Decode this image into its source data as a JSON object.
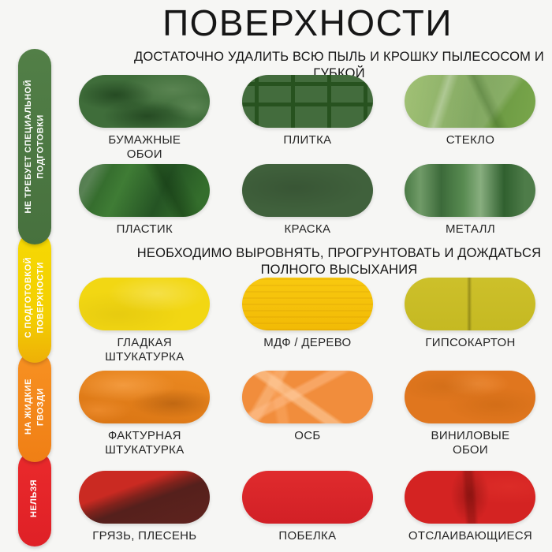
{
  "page": {
    "title": "ПОВЕРХНОСТИ",
    "background_color": "#f6f6f4"
  },
  "sidebar": {
    "sections": [
      {
        "id": "no-prep",
        "label": "НЕ ТРЕБУЕТ СПЕЦИАЛЬНОЙ\nПОДГОТОВКИ",
        "color": "#4e7b44"
      },
      {
        "id": "with-prep",
        "label": "С ПОДГОТОВКОЙ\nПОВЕРХНОСТИ",
        "color": "#f3cf02"
      },
      {
        "id": "liquid-nails",
        "label": "НА ЖИДКИЕ\nГВОЗДИ",
        "color": "#f68b1f"
      },
      {
        "id": "forbidden",
        "label": "НЕЛЬЗЯ",
        "color": "#e52528"
      }
    ]
  },
  "sections": [
    {
      "heading": "ДОСТАТОЧНО УДАЛИТЬ ВСЮ ПЫЛЬ И КРОШКУ ПЫЛЕСОСОМ И ГУБКОЙ"
    },
    {
      "heading": "НЕОБХОДИМО ВЫРОВНЯТЬ, ПРОГРУНТОВАТЬ И ДОЖДАТЬСЯ\nПОЛНОГО ВЫСЫХАНИЯ"
    }
  ],
  "tiles": [
    {
      "label": "БУМАЖНЫЕ\nОБОИ",
      "base_color": "#3f6d3a"
    },
    {
      "label": "ПЛИТКА",
      "base_color": "#436c3d"
    },
    {
      "label": "СТЕКЛО",
      "base_color": "#79a64b"
    },
    {
      "label": "ПЛАСТИК",
      "base_color": "#2f6029"
    },
    {
      "label": "КРАСКА",
      "base_color": "#40613c"
    },
    {
      "label": "МЕТАЛЛ",
      "base_color": "#4e7c49"
    },
    {
      "label": "ГЛАДКАЯ\nШТУКАТУРКА",
      "base_color": "#f2d713"
    },
    {
      "label": "МДФ / ДЕРЕВО",
      "base_color": "#f5c30c"
    },
    {
      "label": "ГИПСОКАРТОН",
      "base_color": "#c9bd26"
    },
    {
      "label": "ФАКТУРНАЯ\nШТУКАТУРКА",
      "base_color": "#e2791a"
    },
    {
      "label": "ОСБ",
      "base_color": "#f18d3c"
    },
    {
      "label": "ВИНИЛОВЫЕ\nОБОИ",
      "base_color": "#e0761e"
    },
    {
      "label": "ГРЯЗЬ, ПЛЕСЕНЬ",
      "base_color": "#b02520"
    },
    {
      "label": "ПОБЕЛКА",
      "base_color": "#d9262b"
    },
    {
      "label": "ОТСЛАИВАЮЩИЕСЯ",
      "base_color": "#d42322"
    }
  ]
}
